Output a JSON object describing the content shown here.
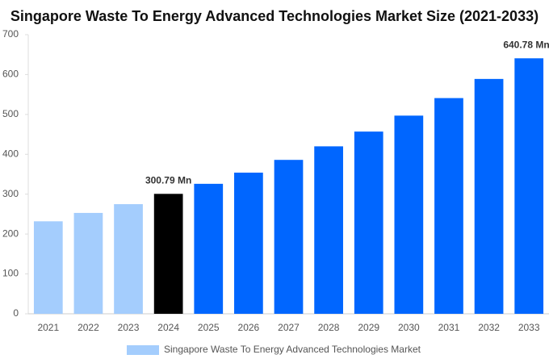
{
  "chart_data": {
    "type": "bar",
    "title": "Singapore Waste To Energy Advanced Technologies Market Size (2021-2033)",
    "categories": [
      "2021",
      "2022",
      "2023",
      "2024",
      "2025",
      "2026",
      "2027",
      "2028",
      "2029",
      "2030",
      "2031",
      "2032",
      "2033"
    ],
    "series": [
      {
        "name": "Singapore Waste To Energy Advanced Technologies Market",
        "color": "#a4cdfd",
        "values": [
          232,
          253,
          275,
          300.79,
          326,
          354,
          386,
          420,
          457,
          497,
          541,
          589,
          640.78
        ],
        "colors": [
          "#a4cdfd",
          "#a4cdfd",
          "#a4cdfd",
          "#000000",
          "#0066ff",
          "#0066ff",
          "#0066ff",
          "#0066ff",
          "#0066ff",
          "#0066ff",
          "#0066ff",
          "#0066ff",
          "#0066ff"
        ],
        "value_labels": [
          null,
          null,
          null,
          "300.79 Mn",
          null,
          null,
          null,
          null,
          null,
          null,
          null,
          null,
          "640.78 Mn"
        ]
      }
    ],
    "ylim": [
      0,
      700
    ],
    "yticks": [
      0,
      100,
      200,
      300,
      400,
      500,
      600,
      700
    ],
    "grid": false
  }
}
